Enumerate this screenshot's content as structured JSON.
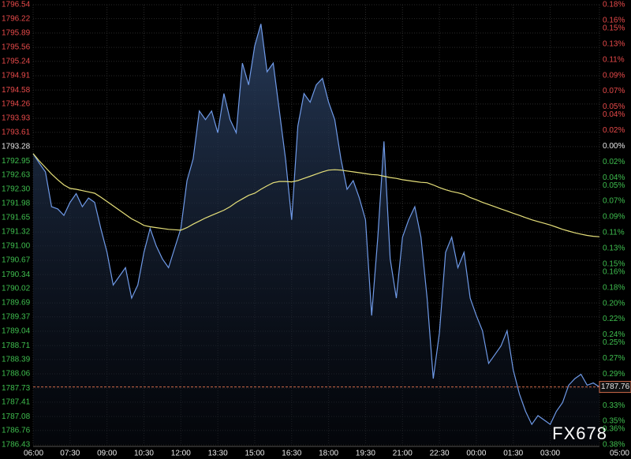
{
  "chart_data": {
    "type": "line",
    "watermark": "FX678",
    "categories": [
      "06:00",
      null,
      null,
      null,
      null,
      null,
      "07:30",
      null,
      null,
      null,
      null,
      null,
      "09:00",
      null,
      null,
      null,
      null,
      null,
      "10:30",
      null,
      null,
      null,
      null,
      null,
      "12:00",
      null,
      null,
      null,
      null,
      null,
      "13:30",
      null,
      null,
      null,
      null,
      null,
      "15:00",
      null,
      null,
      null,
      null,
      null,
      "16:30",
      null,
      null,
      null,
      null,
      null,
      "18:00",
      null,
      null,
      null,
      null,
      null,
      "19:30",
      null,
      null,
      null,
      null,
      null,
      "21:00",
      null,
      null,
      null,
      null,
      null,
      "22:30",
      null,
      null,
      null,
      null,
      null,
      "00:00",
      null,
      null,
      null,
      null,
      null,
      "01:30",
      null,
      null,
      null,
      null,
      null,
      "03:00",
      null,
      null,
      null,
      null,
      null,
      null,
      null,
      "05:00"
    ],
    "series": [
      {
        "color": "#6f9ae8",
        "area": true,
        "values": [
          1793.12,
          1792.9,
          1792.7,
          1791.9,
          1791.85,
          1791.7,
          1792.0,
          1792.2,
          1791.9,
          1792.1,
          1792.0,
          1791.4,
          1790.85,
          1790.1,
          1790.3,
          1790.5,
          1789.8,
          1790.1,
          1790.85,
          1791.4,
          1791.0,
          1790.7,
          1790.5,
          1790.95,
          1791.4,
          1792.5,
          1793.0,
          1794.1,
          1793.9,
          1794.1,
          1793.6,
          1794.5,
          1793.9,
          1793.6,
          1795.2,
          1794.7,
          1795.6,
          1796.1,
          1795.0,
          1795.2,
          1794.1,
          1793.0,
          1791.6,
          1793.75,
          1794.5,
          1794.3,
          1794.7,
          1794.85,
          1794.3,
          1793.9,
          1793.0,
          1792.3,
          1792.5,
          1792.1,
          1791.6,
          1789.4,
          1791.2,
          1793.4,
          1790.7,
          1789.8,
          1791.2,
          1791.6,
          1791.9,
          1791.2,
          1789.8,
          1787.95,
          1789.0,
          1790.85,
          1791.2,
          1790.5,
          1790.85,
          1789.8,
          1789.4,
          1789.05,
          1788.3,
          1788.5,
          1788.7,
          1789.05,
          1788.15,
          1787.6,
          1787.2,
          1786.9,
          1787.1,
          1787.0,
          1786.9,
          1787.2,
          1787.4,
          1787.8,
          1787.95,
          1788.05,
          1787.8,
          1787.85,
          1787.76
        ]
      },
      {
        "color": "#e6e07a",
        "values": [
          1793.12,
          1792.95,
          1792.8,
          1792.65,
          1792.52,
          1792.4,
          1792.32,
          1792.3,
          1792.27,
          1792.24,
          1792.21,
          1792.12,
          1792.02,
          1791.92,
          1791.82,
          1791.72,
          1791.62,
          1791.55,
          1791.47,
          1791.44,
          1791.42,
          1791.4,
          1791.38,
          1791.37,
          1791.36,
          1791.42,
          1791.5,
          1791.57,
          1791.64,
          1791.7,
          1791.76,
          1791.82,
          1791.9,
          1792.0,
          1792.08,
          1792.16,
          1792.21,
          1792.3,
          1792.38,
          1792.45,
          1792.48,
          1792.48,
          1792.47,
          1792.5,
          1792.55,
          1792.6,
          1792.65,
          1792.7,
          1792.74,
          1792.75,
          1792.74,
          1792.72,
          1792.7,
          1792.68,
          1792.66,
          1792.64,
          1792.63,
          1792.6,
          1792.57,
          1792.55,
          1792.52,
          1792.5,
          1792.48,
          1792.46,
          1792.45,
          1792.4,
          1792.34,
          1792.29,
          1792.25,
          1792.22,
          1792.18,
          1792.11,
          1792.06,
          1792.0,
          1791.95,
          1791.9,
          1791.85,
          1791.8,
          1791.75,
          1791.7,
          1791.65,
          1791.6,
          1791.56,
          1791.52,
          1791.48,
          1791.43,
          1791.38,
          1791.34,
          1791.3,
          1791.27,
          1791.24,
          1791.22,
          1791.21
        ]
      }
    ],
    "last_price": 1787.76,
    "ylim": [
      1786.43,
      1796.54
    ],
    "yticks": [
      1796.54,
      1796.22,
      1795.89,
      1795.56,
      1795.24,
      1794.91,
      1794.58,
      1794.26,
      1793.93,
      1793.61,
      1793.28,
      1792.95,
      1792.63,
      {
        "value": 1792.3,
        "label": "1792.30"
      },
      1791.98,
      1791.65,
      1791.32,
      {
        "value": 1791,
        "label": "1791.00"
      },
      1790.67,
      1790.34,
      1790.02,
      1789.69,
      1789.37,
      1789.04,
      1788.71,
      1788.39,
      1788.06,
      1787.73,
      1787.41,
      1787.08,
      1786.76,
      1786.43
    ],
    "y2lim": [
      -0.38,
      0.18
    ],
    "y2ticks": [
      {
        "value": 0.18,
        "label": "0.18%"
      },
      {
        "value": 0.16,
        "label": "0.16%"
      },
      {
        "value": 0.15,
        "label": "0.15%"
      },
      {
        "value": 0.13,
        "label": "0.13%"
      },
      {
        "value": 0.11,
        "label": "0.11%"
      },
      {
        "value": 0.09,
        "label": "0.09%"
      },
      {
        "value": 0.07,
        "label": "0.07%"
      },
      {
        "value": 0.05,
        "label": "0.05%"
      },
      {
        "value": 0.04,
        "label": "0.04%"
      },
      {
        "value": 0.02,
        "label": "0.02%"
      },
      {
        "value": 0,
        "label": "0.00%"
      },
      {
        "value": -0.02,
        "label": "0.02%"
      },
      {
        "value": -0.04,
        "label": "0.04%"
      },
      {
        "value": -0.05,
        "label": "0.05%"
      },
      {
        "value": -0.07,
        "label": "0.07%"
      },
      {
        "value": -0.09,
        "label": "0.09%"
      },
      {
        "value": -0.11,
        "label": "0.11%"
      },
      {
        "value": -0.13,
        "label": "0.13%"
      },
      {
        "value": -0.15,
        "label": "0.15%"
      },
      {
        "value": -0.16,
        "label": "0.16%"
      },
      {
        "value": -0.18,
        "label": "0.18%"
      },
      {
        "value": -0.2,
        "label": "0.20%"
      },
      {
        "value": -0.22,
        "label": "0.22%"
      },
      {
        "value": -0.24,
        "label": "0.24%"
      },
      {
        "value": -0.25,
        "label": "0.25%"
      },
      {
        "value": -0.27,
        "label": "0.27%"
      },
      {
        "value": -0.29,
        "label": "0.29%"
      },
      {
        "value": -0.31,
        "label": "0.31%"
      },
      {
        "value": -0.33,
        "label": "0.33%"
      },
      {
        "value": -0.35,
        "label": "0.35%"
      },
      {
        "value": -0.36,
        "label": "0.36%"
      },
      {
        "value": -0.38,
        "label": "0.38%"
      }
    ],
    "grid": true
  }
}
